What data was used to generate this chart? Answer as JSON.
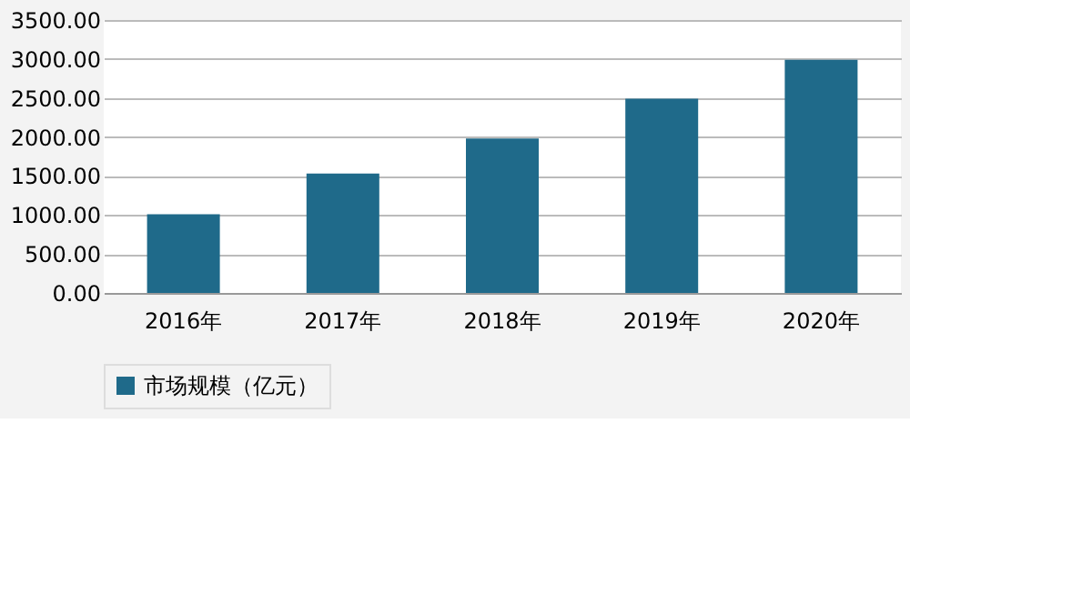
{
  "chart_data": {
    "type": "bar",
    "categories": [
      "2016年",
      "2017年",
      "2018年",
      "2019年",
      "2020年"
    ],
    "series": [
      {
        "name": "市场规模（亿元）",
        "color": "#1f6a8a",
        "values": [
          1010,
          1530,
          1980,
          2490,
          2990
        ]
      }
    ],
    "ylim": [
      0,
      3500
    ],
    "yticks": [
      {
        "value": 0,
        "label": "0.00"
      },
      {
        "value": 500,
        "label": "500.00"
      },
      {
        "value": 1000,
        "label": "1000.00"
      },
      {
        "value": 1500,
        "label": "1500.00"
      },
      {
        "value": 2000,
        "label": "2000.00"
      },
      {
        "value": 2500,
        "label": "2500.00"
      },
      {
        "value": 3000,
        "label": "3000.00"
      },
      {
        "value": 3500,
        "label": "3500.00"
      }
    ],
    "grid": "y",
    "legend": "bottom"
  }
}
